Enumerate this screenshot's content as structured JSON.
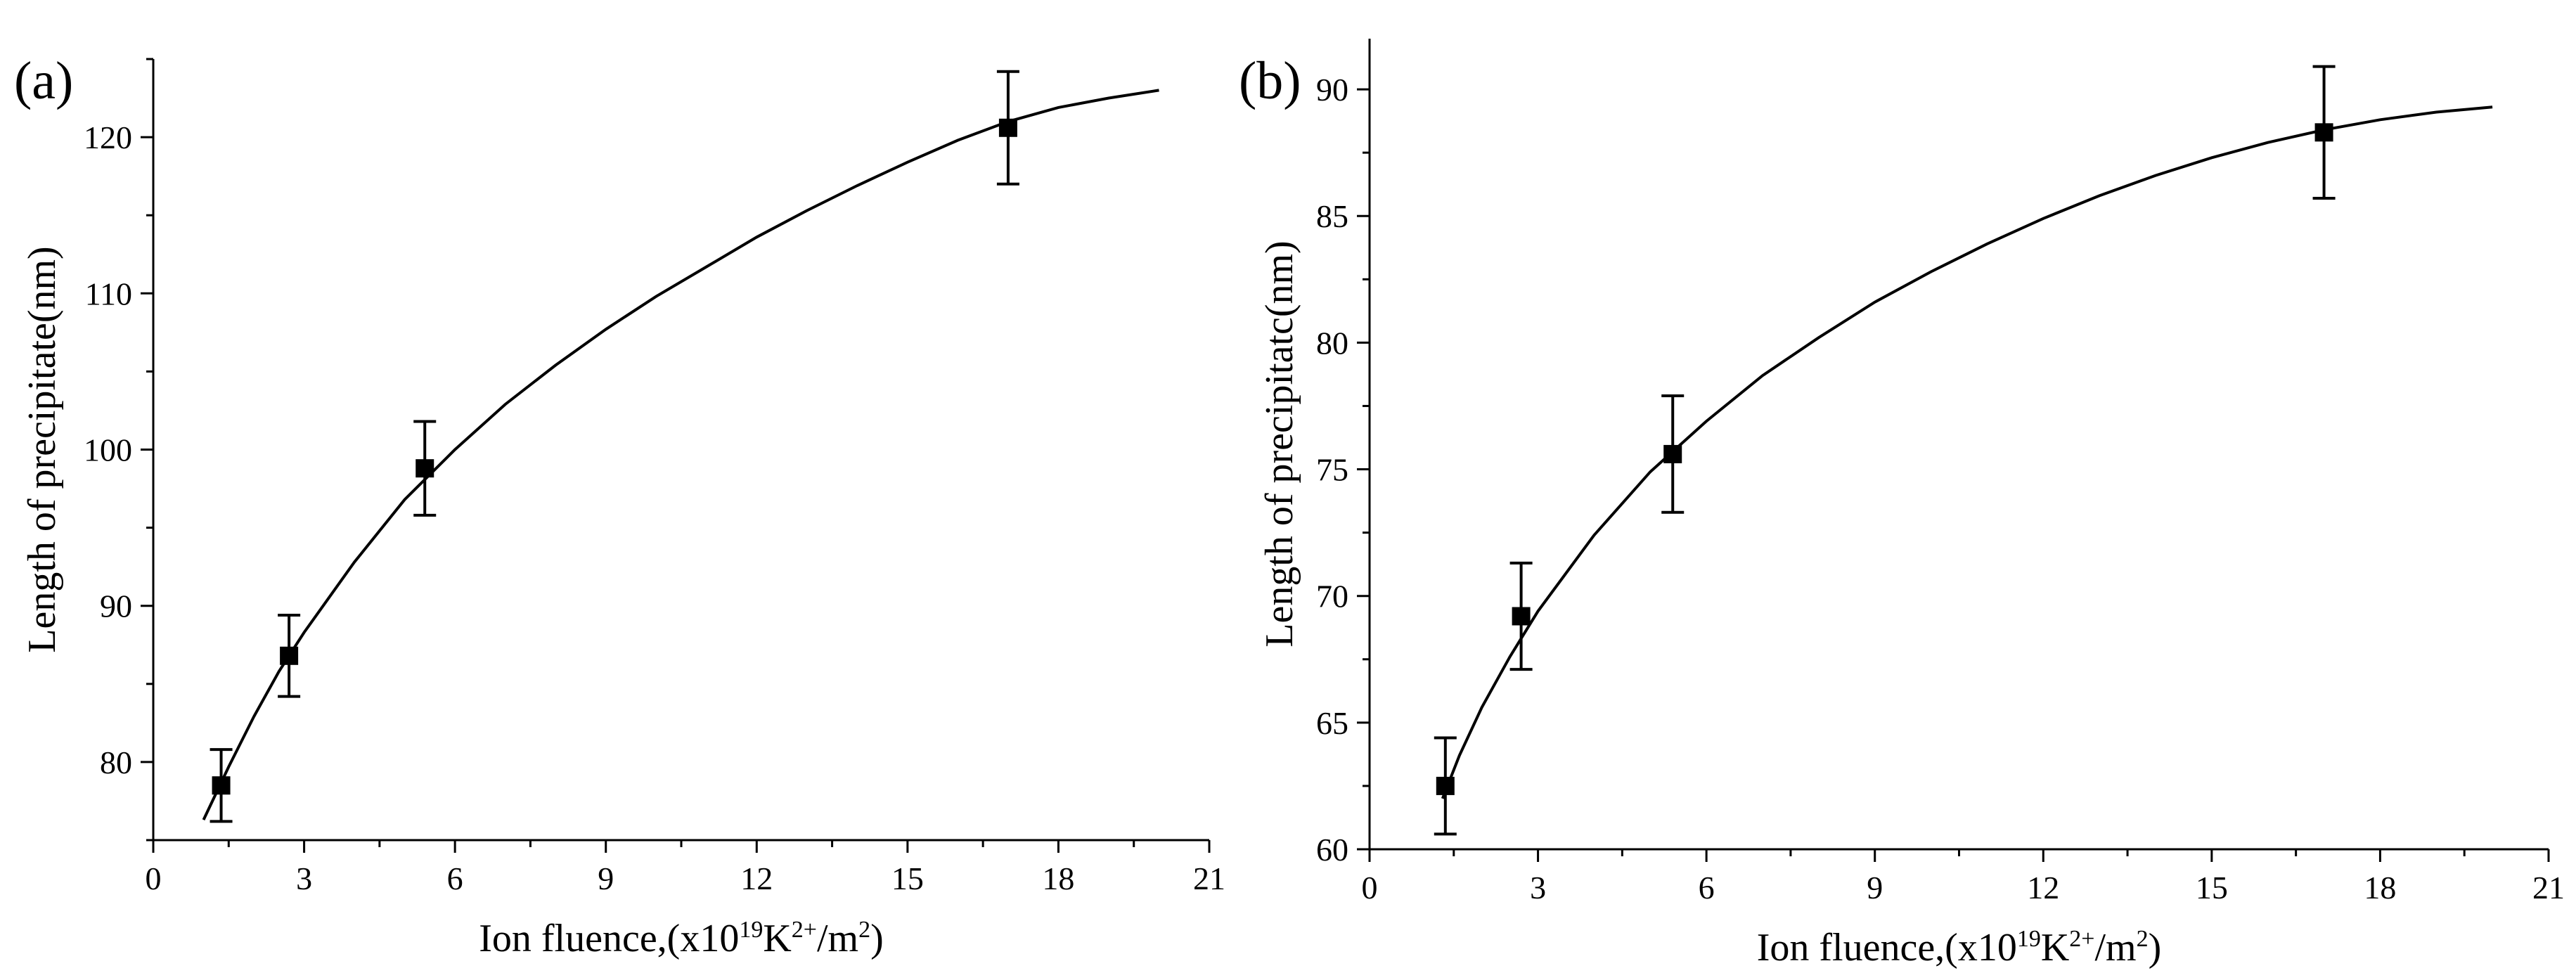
{
  "chart_data": [
    {
      "type": "scatter",
      "panel_label": "(a)",
      "title": "",
      "xlabel": "Ion fluence,(x10",
      "xlabel_exp": "19",
      "xlabel_mid": "K",
      "xlabel_charge": "2+",
      "xlabel_unit": "/m",
      "xlabel_unit_exp": "2",
      "xlabel_end": ")",
      "ylabel": "Length of precipitate(nm)",
      "xlim": [
        0,
        21
      ],
      "ylim": [
        75,
        125
      ],
      "xticks": [
        0,
        3,
        6,
        9,
        12,
        15,
        18,
        21
      ],
      "yticks": [
        80,
        90,
        100,
        110,
        120
      ],
      "series": [
        {
          "name": "measured",
          "marker": "square",
          "x": [
            1.35,
            2.7,
            5.4,
            17.0
          ],
          "y": [
            78.5,
            86.8,
            98.8,
            120.6
          ],
          "error": [
            2.3,
            2.6,
            3.0,
            3.6
          ]
        },
        {
          "name": "fit",
          "style": "line",
          "x": [
            1.0,
            1.5,
            2.0,
            2.5,
            3.0,
            4.0,
            5.0,
            6.0,
            7.0,
            8.0,
            9.0,
            10.0,
            11.0,
            12.0,
            13.0,
            14.0,
            15.0,
            16.0,
            17.0,
            18.0,
            19.0,
            20.0
          ],
          "y": [
            76.3,
            79.7,
            82.9,
            85.8,
            88.3,
            92.8,
            96.8,
            100.0,
            102.9,
            105.4,
            107.7,
            109.8,
            111.7,
            113.6,
            115.3,
            116.9,
            118.4,
            119.8,
            121.0,
            121.9,
            122.5,
            123.0
          ]
        }
      ]
    },
    {
      "type": "scatter",
      "panel_label": "(b)",
      "title": "",
      "xlabel": "Ion fluence,(x10",
      "xlabel_exp": "19",
      "xlabel_mid": "K",
      "xlabel_charge": "2+",
      "xlabel_unit": "/m",
      "xlabel_unit_exp": "2",
      "xlabel_end": ")",
      "ylabel": "Length of precipitatc(nm)",
      "xlim": [
        0,
        21
      ],
      "ylim": [
        60,
        92
      ],
      "xticks": [
        0,
        3,
        6,
        9,
        12,
        15,
        18,
        21
      ],
      "yticks": [
        60,
        65,
        70,
        75,
        80,
        85,
        90
      ],
      "series": [
        {
          "name": "measured",
          "marker": "square",
          "x": [
            1.35,
            2.7,
            5.4,
            17.0
          ],
          "y": [
            62.5,
            69.2,
            75.6,
            88.3
          ],
          "error": [
            1.9,
            2.1,
            2.3,
            2.6
          ]
        },
        {
          "name": "fit",
          "style": "line",
          "x": [
            1.3,
            1.6,
            2.0,
            2.5,
            3.0,
            4.0,
            5.0,
            6.0,
            7.0,
            8.0,
            9.0,
            10.0,
            11.0,
            12.0,
            13.0,
            14.0,
            15.0,
            16.0,
            17.0,
            18.0,
            19.0,
            20.0
          ],
          "y": [
            62.0,
            63.7,
            65.6,
            67.6,
            69.4,
            72.4,
            74.9,
            76.9,
            78.7,
            80.2,
            81.6,
            82.8,
            83.9,
            84.9,
            85.8,
            86.6,
            87.3,
            87.9,
            88.4,
            88.8,
            89.1,
            89.3
          ]
        }
      ]
    }
  ]
}
